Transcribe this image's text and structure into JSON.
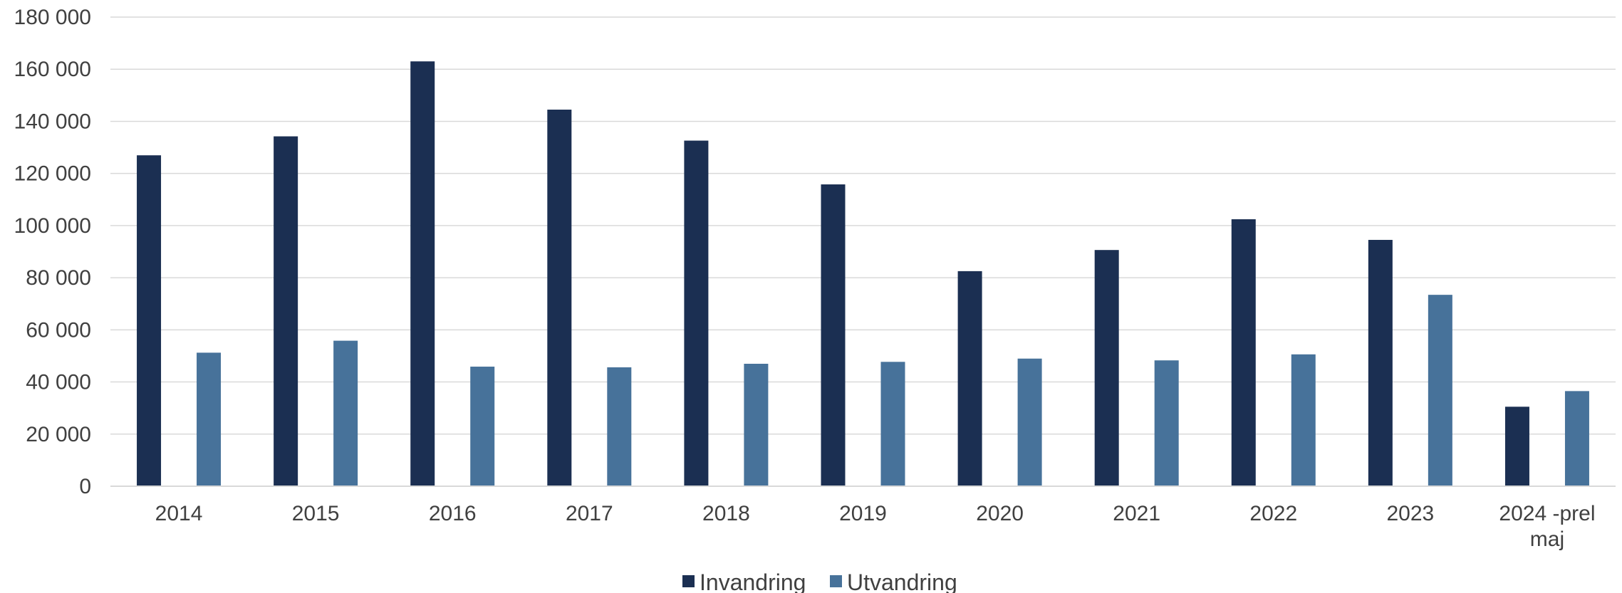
{
  "chart_data": {
    "type": "bar",
    "categories": [
      "2014",
      "2015",
      "2016",
      "2017",
      "2018",
      "2019",
      "2020",
      "2021",
      "2022",
      "2023",
      "2024 -prel maj"
    ],
    "category_lines": [
      [
        "2014"
      ],
      [
        "2015"
      ],
      [
        "2016"
      ],
      [
        "2017"
      ],
      [
        "2018"
      ],
      [
        "2019"
      ],
      [
        "2020"
      ],
      [
        "2021"
      ],
      [
        "2022"
      ],
      [
        "2023"
      ],
      [
        "2024 -prel",
        "maj"
      ]
    ],
    "series": [
      {
        "name": "Invandring",
        "color": "#1b2f52",
        "values": [
          126966,
          134240,
          163005,
          144489,
          132602,
          115805,
          82518,
          90631,
          102436,
          94514,
          30500
        ]
      },
      {
        "name": "Utvandring",
        "color": "#47729a",
        "values": [
          51237,
          55830,
          45878,
          45620,
          46981,
          47718,
          48964,
          48284,
          50592,
          73434,
          36500
        ]
      }
    ],
    "y_ticks": [
      "0",
      "20 000",
      "40 000",
      "60 000",
      "80 000",
      "100 000",
      "120 000",
      "140 000",
      "160 000",
      "180 000"
    ],
    "ylim": [
      0,
      180000
    ],
    "grid": true,
    "legend": "bottom-center",
    "title": "",
    "xlabel": "",
    "ylabel": ""
  }
}
